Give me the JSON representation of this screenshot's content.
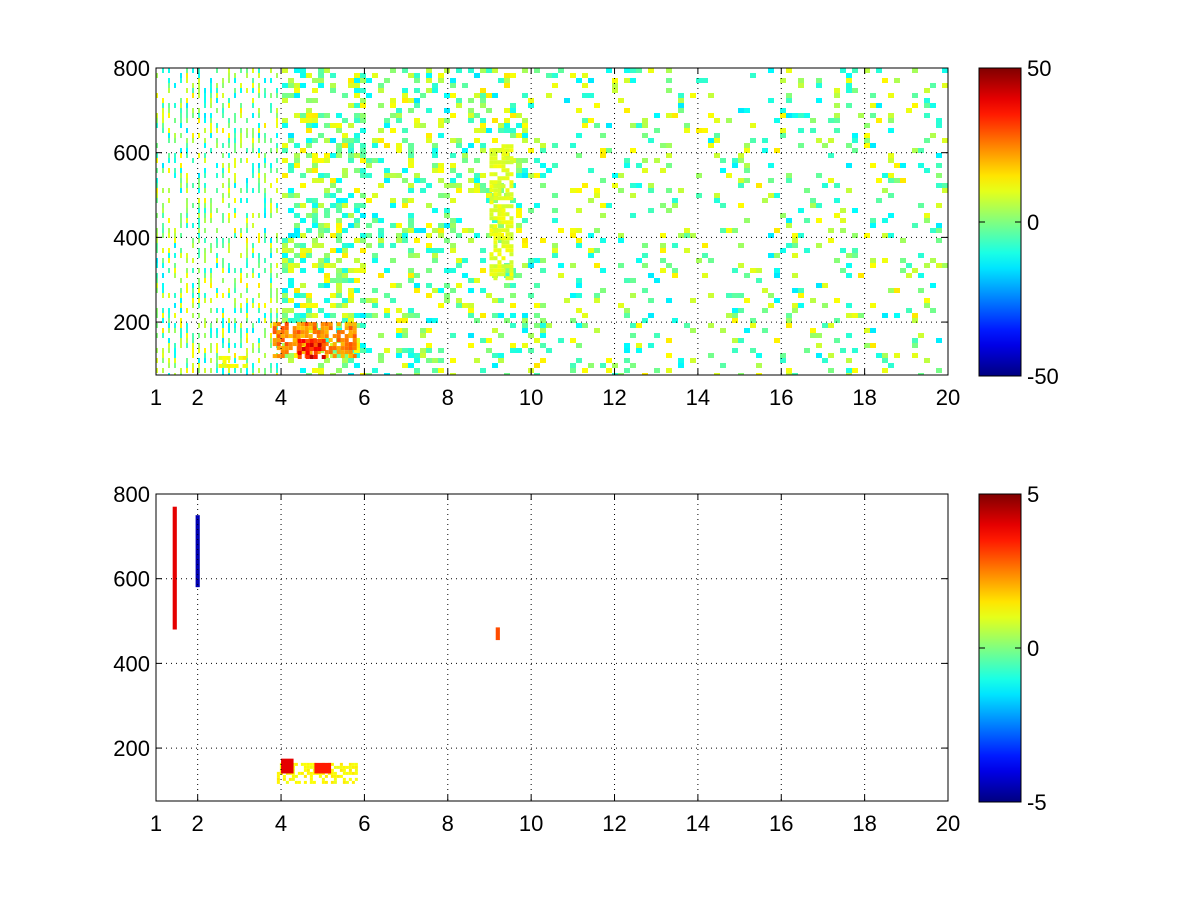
{
  "figure": {
    "background": "#ffffff",
    "colormap": "jet"
  },
  "chart_data": [
    {
      "type": "heatmap",
      "title": "",
      "xlabel": "",
      "ylabel": "",
      "xlim": [
        1,
        20
      ],
      "ylim": [
        75,
        800
      ],
      "x_ticks": [
        "1",
        "2",
        "4",
        "6",
        "8",
        "10",
        "12",
        "14",
        "16",
        "18",
        "20"
      ],
      "x_tick_values": [
        1,
        2,
        4,
        6,
        8,
        10,
        12,
        14,
        16,
        18,
        20
      ],
      "y_ticks": [
        "200",
        "400",
        "600",
        "800"
      ],
      "y_tick_values": [
        200,
        400,
        600,
        800
      ],
      "grid": true,
      "colorbar": {
        "min": -50,
        "max": 50,
        "ticks": [
          "-50",
          "0",
          "50"
        ],
        "tick_values": [
          -50,
          0,
          50
        ]
      },
      "fill": "dense scattered noise with values mostly near 0 (green/cyan/yellow), denser for x < 6",
      "features": [
        {
          "x": [
            3.8,
            5.8
          ],
          "y": [
            115,
            200
          ],
          "value": 30,
          "description": "strong positive (orange-red) patch"
        },
        {
          "x": [
            4.4,
            5.0
          ],
          "y": [
            120,
            160
          ],
          "value": 45,
          "description": "peak (dark red)"
        },
        {
          "x": [
            2.5,
            3.1
          ],
          "y": [
            95,
            120
          ],
          "value": 15,
          "description": "yellow patch"
        },
        {
          "x": [
            9.0,
            9.5
          ],
          "y": [
            300,
            620
          ],
          "value": 12,
          "description": "yellow vertical streak"
        }
      ]
    },
    {
      "type": "heatmap",
      "title": "",
      "xlabel": "",
      "ylabel": "",
      "xlim": [
        1,
        20
      ],
      "ylim": [
        75,
        800
      ],
      "x_ticks": [
        "1",
        "2",
        "4",
        "6",
        "8",
        "10",
        "12",
        "14",
        "16",
        "18",
        "20"
      ],
      "x_tick_values": [
        1,
        2,
        4,
        6,
        8,
        10,
        12,
        14,
        16,
        18,
        20
      ],
      "y_ticks": [
        "200",
        "400",
        "600",
        "800"
      ],
      "y_tick_values": [
        200,
        400,
        600,
        800
      ],
      "grid": true,
      "colorbar": {
        "min": -5,
        "max": 5,
        "ticks": [
          "-5",
          "0",
          "5"
        ],
        "tick_values": [
          -5,
          0,
          5
        ]
      },
      "fill": "mostly empty; sparse thin streaks near x≈1–2, x≈3.9 and x≈5.4",
      "features": [
        {
          "x": [
            3.9,
            5.8
          ],
          "y": [
            120,
            165
          ],
          "value": 1.5,
          "description": "yellow/green horizontal band"
        },
        {
          "x": [
            4.0,
            4.3
          ],
          "y": [
            140,
            175
          ],
          "value": 4,
          "description": "red specks"
        },
        {
          "x": [
            4.8,
            5.2
          ],
          "y": [
            140,
            165
          ],
          "value": 3.5,
          "description": "orange-red specks"
        },
        {
          "x": [
            9.15,
            9.25
          ],
          "y": [
            455,
            485
          ],
          "value": 3,
          "description": "orange square"
        },
        {
          "x": [
            1.95,
            2.05
          ],
          "y": [
            580,
            750
          ],
          "value": -4.5,
          "description": "blue vertical streak"
        },
        {
          "x": [
            1.4,
            1.5
          ],
          "y": [
            480,
            770
          ],
          "value": 4,
          "description": "red vertical streak"
        }
      ]
    }
  ]
}
